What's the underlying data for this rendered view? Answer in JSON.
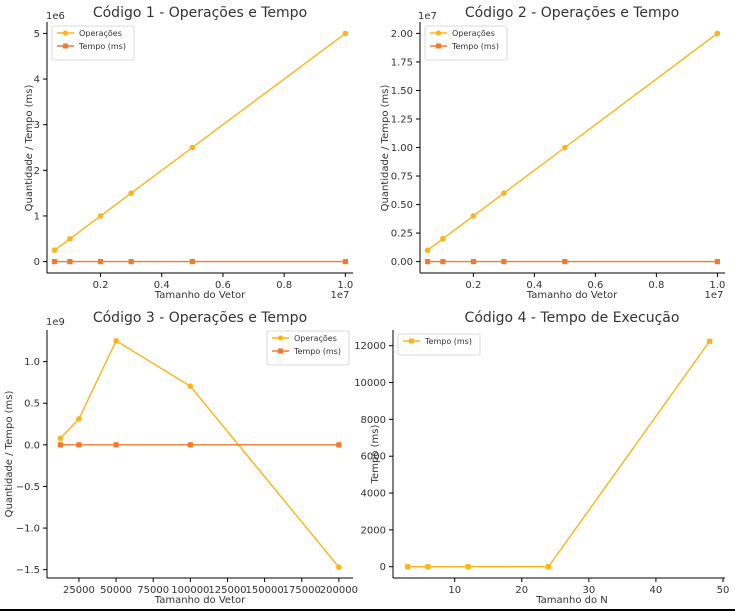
{
  "chart_data": [
    {
      "type": "line",
      "title": "Código 1 - Operações e Tempo",
      "xlabel": "Tamanho do Vetor",
      "ylabel": "Quantidade / Tempo (ms)",
      "x_offset_label": "1e7",
      "y_offset_label": "1e6",
      "x_ticks": [
        0.2,
        0.4,
        0.6,
        0.8,
        1.0
      ],
      "x_tick_labels": [
        "0.2",
        "0.4",
        "0.6",
        "0.8",
        "1.0"
      ],
      "y_ticks": [
        0,
        1,
        2,
        3,
        4,
        5
      ],
      "y_tick_labels": [
        "0",
        "1",
        "2",
        "3",
        "4",
        "5"
      ],
      "xlim": [
        0.025,
        1.025
      ],
      "ylim": [
        -0.25,
        5.25
      ],
      "x_unit": 10000000,
      "y_unit": 1000000,
      "legend_position": "upper-left",
      "x": [
        500000,
        1000000,
        2000000,
        3000000,
        5000000,
        10000000
      ],
      "series": [
        {
          "name": "Operações",
          "color": "#fbb317",
          "marker": "circle",
          "values": [
            250000,
            500000,
            1000000,
            1500000,
            2500000,
            5000000
          ]
        },
        {
          "name": "Tempo (ms)",
          "color": "#ef7a2d",
          "marker": "square",
          "values": [
            0,
            0,
            0,
            0,
            0,
            0
          ]
        }
      ]
    },
    {
      "type": "line",
      "title": "Código 2 - Operações e Tempo",
      "xlabel": "Tamanho do Vetor",
      "ylabel": "Quantidade / Tempo (ms)",
      "x_offset_label": "1e7",
      "y_offset_label": "1e7",
      "x_ticks": [
        0.2,
        0.4,
        0.6,
        0.8,
        1.0
      ],
      "x_tick_labels": [
        "0.2",
        "0.4",
        "0.6",
        "0.8",
        "1.0"
      ],
      "y_ticks": [
        0,
        0.25,
        0.5,
        0.75,
        1.0,
        1.25,
        1.5,
        1.75,
        2.0
      ],
      "y_tick_labels": [
        "0.00",
        "0.25",
        "0.50",
        "0.75",
        "1.00",
        "1.25",
        "1.50",
        "1.75",
        "2.00"
      ],
      "xlim": [
        0.025,
        1.025
      ],
      "ylim": [
        -0.1,
        2.1
      ],
      "x_unit": 10000000,
      "y_unit": 10000000,
      "legend_position": "upper-left",
      "x": [
        500000,
        1000000,
        2000000,
        3000000,
        5000000,
        10000000
      ],
      "series": [
        {
          "name": "Operações",
          "color": "#fbb317",
          "marker": "circle",
          "values": [
            1000000,
            2000000,
            4000000,
            6000000,
            10000000,
            20000000
          ]
        },
        {
          "name": "Tempo (ms)",
          "color": "#ef7a2d",
          "marker": "square",
          "values": [
            0,
            0,
            0,
            0,
            0,
            0
          ]
        }
      ]
    },
    {
      "type": "line",
      "title": "Código 3 - Operações e Tempo",
      "xlabel": "Tamanho do Vetor",
      "ylabel": "Quantidade / Tempo (ms)",
      "x_offset_label": "",
      "y_offset_label": "1e9",
      "x_ticks": [
        25000,
        50000,
        75000,
        100000,
        125000,
        150000,
        175000,
        200000
      ],
      "x_tick_labels": [
        "25000",
        "50000",
        "75000",
        "100000",
        "125000",
        "150000",
        "175000",
        "200000"
      ],
      "y_ticks": [
        -1.5,
        -1.0,
        -0.5,
        0.0,
        0.5,
        1.0
      ],
      "y_tick_labels": [
        "−1.5",
        "−1.0",
        "−0.5",
        "0.0",
        "0.5",
        "1.0"
      ],
      "xlim": [
        3500,
        209500
      ],
      "ylim": [
        -1.6,
        1.38
      ],
      "x_unit": 1,
      "y_unit": 1000000000,
      "legend_position": "upper-right",
      "x": [
        12500,
        25000,
        50000,
        100000,
        200000
      ],
      "series": [
        {
          "name": "Operações",
          "color": "#fbb317",
          "marker": "circle",
          "values": [
            78000000,
            312000000,
            1250000000,
            705000000,
            -1470000000
          ]
        },
        {
          "name": "Tempo (ms)",
          "color": "#ef7a2d",
          "marker": "square",
          "values": [
            0,
            0,
            0,
            0,
            0
          ]
        }
      ]
    },
    {
      "type": "line",
      "title": "Código 4 - Tempo de Execução",
      "xlabel": "Tamanho do N",
      "ylabel": "Tempo (ms)",
      "x_offset_label": "",
      "y_offset_label": "",
      "x_ticks": [
        10,
        20,
        30,
        40,
        50
      ],
      "x_tick_labels": [
        "10",
        "20",
        "30",
        "40",
        "50"
      ],
      "y_ticks": [
        0,
        2000,
        4000,
        6000,
        8000,
        10000,
        12000
      ],
      "y_tick_labels": [
        "0",
        "2000",
        "4000",
        "6000",
        "8000",
        "10000",
        "12000"
      ],
      "xlim": [
        0.8,
        50.3
      ],
      "ylim": [
        -612,
        12852
      ],
      "x_unit": 1,
      "y_unit": 1,
      "legend_position": "upper-left",
      "x": [
        3,
        6,
        12,
        24,
        48
      ],
      "series": [
        {
          "name": "Tempo (ms)",
          "color": "#fbb317",
          "marker": "square",
          "values": [
            0,
            0,
            2,
            8,
            12240
          ]
        }
      ]
    }
  ]
}
